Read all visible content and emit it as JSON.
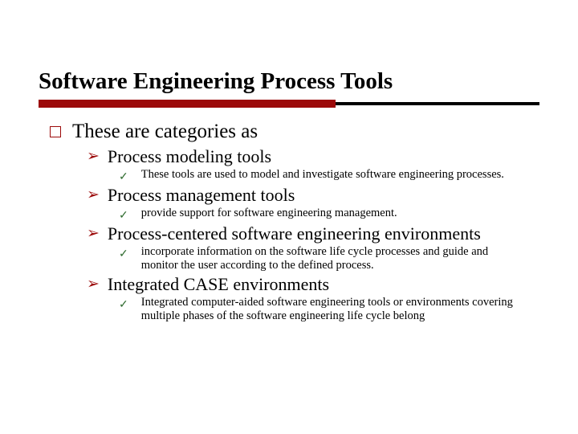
{
  "title": "Software Engineering Process Tools",
  "colors": {
    "rule_red": "#9c0a0a",
    "rule_dark": "#000000",
    "square_border": "#9c0a0a",
    "arrow": "#9c0a0a",
    "check": "#2f6b2f",
    "text": "#000000",
    "background": "#ffffff"
  },
  "typography": {
    "title_fontsize": 29,
    "level1_fontsize": 25,
    "level2_fontsize": 22,
    "level3_fontsize": 14.5,
    "font_family": "Times New Roman"
  },
  "level1": {
    "text": "These are categories as"
  },
  "items": [
    {
      "heading": "Process modeling tools",
      "detail": " These tools are used to model and investigate software engineering processes."
    },
    {
      "heading": "Process management tools",
      "detail": "provide support for software engineering management."
    },
    {
      "heading": "Process-centered software engineering environments",
      "detail": "incorporate information on the software life cycle processes and guide and monitor the user according to the defined process."
    },
    {
      "heading": "Integrated CASE environments",
      "detail": "Integrated computer-aided software engineering tools or environments covering multiple phases of the software engineering life cycle belong"
    }
  ]
}
